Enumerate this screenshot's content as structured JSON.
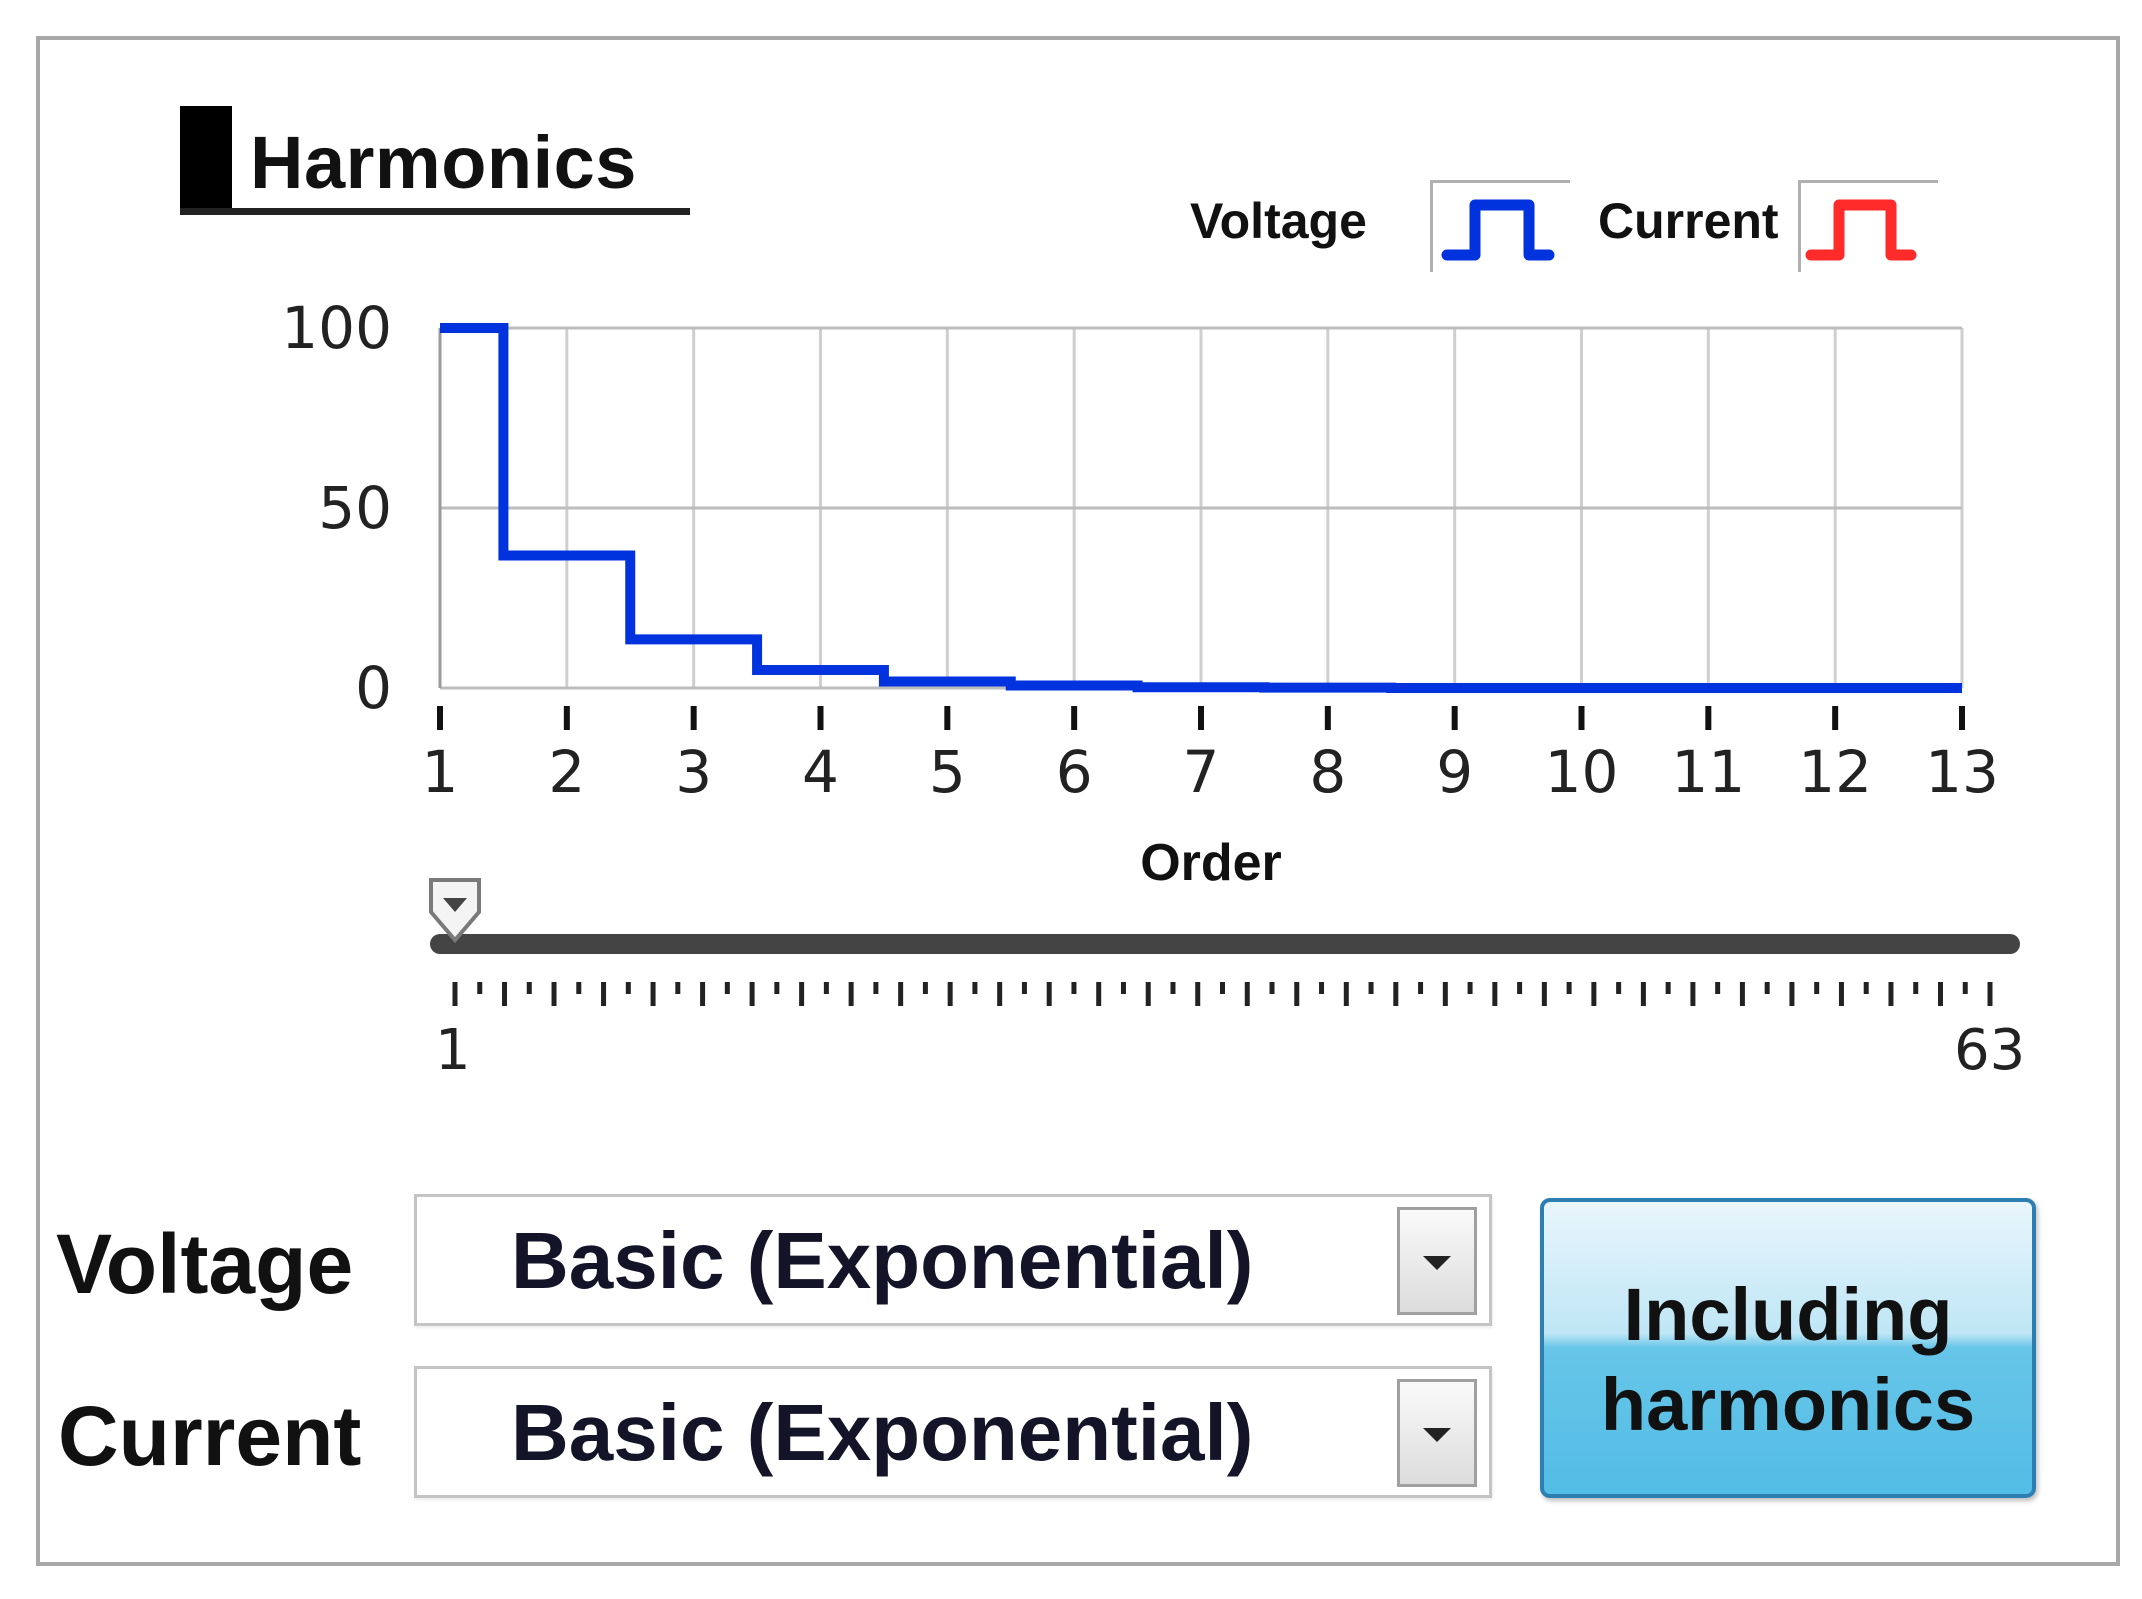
{
  "panel": {
    "title": "Harmonics",
    "legend": [
      {
        "label": "Voltage",
        "icon": "voltage-waveform-icon",
        "color": "#0033dd"
      },
      {
        "label": "Current",
        "icon": "current-waveform-icon",
        "color": "#ff2a2a"
      }
    ]
  },
  "chart_data": {
    "type": "line",
    "step": true,
    "xlabel": "Order",
    "x_ticks": [
      "1",
      "2",
      "3",
      "4",
      "5",
      "6",
      "7",
      "8",
      "9",
      "10",
      "11",
      "12",
      "13"
    ],
    "y_ticks": [
      "0",
      "50",
      "100"
    ],
    "xlim": [
      1,
      13
    ],
    "ylim": [
      0,
      100
    ],
    "grid": true,
    "legend_position": "top-right",
    "series": [
      {
        "name": "Voltage",
        "color": "#0033dd",
        "x": [
          1,
          2,
          3,
          4,
          5,
          6,
          7,
          8,
          9,
          10,
          11,
          12,
          13
        ],
        "values": [
          100,
          36.8,
          13.5,
          5.0,
          1.8,
          0.7,
          0.2,
          0.1,
          0,
          0,
          0,
          0,
          0
        ]
      }
    ]
  },
  "slider": {
    "min_label": "1",
    "max_label": "63",
    "min": 1,
    "max": 63,
    "value": 1
  },
  "controls": {
    "voltage_label": "Voltage",
    "voltage_value": "Basic (Exponential)",
    "current_label": "Current",
    "current_value": "Basic (Exponential)",
    "including_line1": "Including",
    "including_line2": "harmonics"
  }
}
